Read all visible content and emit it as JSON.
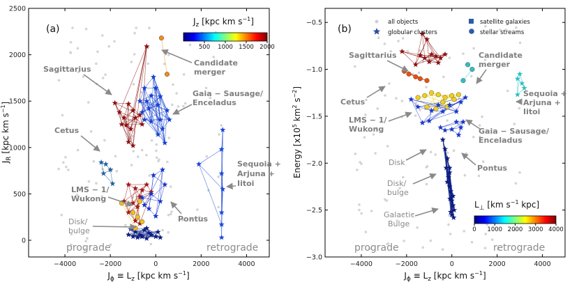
{
  "chart_data": [
    {
      "type": "scatter",
      "panel_label": "(a)",
      "xlabel": "Jϕ ≡ L z [kpc km s⁻¹]",
      "xlabel_parts": {
        "main": "J",
        "sub1": "ϕ",
        "mid": " ≡ L",
        "sub2": "z",
        "unit": " [kpc km s",
        "exp": "−1",
        "close": "]"
      },
      "ylabel_parts": {
        "main": "J",
        "sub": "R",
        "unit": " [kpc km s",
        "exp": "−1",
        "close": "]"
      },
      "xlim": [
        -5600,
        5000
      ],
      "ylim": [
        -180,
        2500
      ],
      "xticks": [
        -4000,
        -2000,
        0,
        2000,
        4000
      ],
      "yticks": [
        0,
        500,
        1000,
        1500,
        2000,
        2500
      ],
      "xtick_labels": [
        "−4000",
        "−2000",
        "0",
        "2000",
        "4000"
      ],
      "ytick_labels": [
        "0",
        "500",
        "1000",
        "1500",
        "2000",
        "2500"
      ],
      "colorbar": {
        "title_parts": {
          "main": "J",
          "sub": "z",
          "unit": " [kpc km s",
          "exp": "−1",
          "close": "]"
        },
        "range": [
          0,
          2000
        ],
        "ticks": [
          500,
          1000,
          1500,
          2000
        ],
        "tick_labels": [
          "500",
          "1000",
          "1500",
          "2000"
        ]
      },
      "regions": {
        "left": "prograde",
        "right": "retrograde"
      },
      "annotations": [
        {
          "lines": [
            "Sagittarius"
          ],
          "style": "bold"
        },
        {
          "lines": [
            "Candidate",
            "merger"
          ],
          "style": "bold"
        },
        {
          "lines": [
            "Gaia − Sausage/",
            "Enceladus"
          ],
          "style": "bold"
        },
        {
          "lines": [
            "Cetus"
          ],
          "style": "bold"
        },
        {
          "lines": [
            "Sequoia +",
            "Arjuna +",
            "Iitoi"
          ],
          "style": "bold"
        },
        {
          "lines": [
            "LMS − 1/",
            "Wukong"
          ],
          "style": "bold"
        },
        {
          "lines": [
            "Pontus"
          ],
          "style": "bold"
        },
        {
          "lines": [
            "Disk/",
            "bulge"
          ],
          "style": "plain"
        }
      ],
      "groups": [
        {
          "id": "sagittarius",
          "color": "#8b1010",
          "points": [
            [
              -1800,
              1480
            ],
            [
              -1600,
              1380
            ],
            [
              -1400,
              1320
            ],
            [
              -1200,
              1470
            ],
            [
              -1000,
              1400
            ],
            [
              -900,
              1320
            ],
            [
              -1300,
              1240
            ],
            [
              -1100,
              1200
            ],
            [
              -1500,
              1250
            ],
            [
              -700,
              1350
            ],
            [
              -600,
              1250
            ],
            [
              -400,
              2090
            ],
            [
              -1200,
              1060
            ],
            [
              -1000,
              1020
            ]
          ],
          "marker": "star"
        },
        {
          "id": "candidate",
          "color": "#f08c1c",
          "points": [
            [
              250,
              2180
            ],
            [
              500,
              1790
            ]
          ],
          "marker": "circle"
        },
        {
          "id": "gse",
          "color": "#1540d0",
          "points": [
            [
              -600,
              1380
            ],
            [
              -500,
              1640
            ],
            [
              -400,
              1500
            ],
            [
              -300,
              1420
            ],
            [
              -200,
              1280
            ],
            [
              0,
              1640
            ],
            [
              100,
              1460
            ],
            [
              200,
              1300
            ],
            [
              300,
              1200
            ],
            [
              400,
              1050
            ],
            [
              500,
              1400
            ],
            [
              -700,
              1500
            ],
            [
              -200,
              1560
            ],
            [
              600,
              1300
            ],
            [
              -100,
              1760
            ],
            [
              200,
              1550
            ],
            [
              100,
              1140
            ],
            [
              -500,
              1300
            ]
          ],
          "marker": "star"
        },
        {
          "id": "cetus",
          "color": "#2060a0",
          "points": [
            [
              -2400,
              840
            ],
            [
              -2200,
              820
            ],
            [
              -2000,
              760
            ],
            [
              -2300,
              720
            ],
            [
              -1900,
              610
            ]
          ],
          "marker": "star"
        },
        {
          "id": "sequoia",
          "color": "#1a48d8",
          "points": [
            [
              1900,
              820
            ],
            [
              2900,
              980
            ],
            [
              2900,
              720
            ],
            [
              2950,
              550
            ],
            [
              2900,
              300
            ],
            [
              2950,
              1190
            ],
            [
              2900,
              170
            ],
            [
              2900,
              30
            ]
          ],
          "marker": "star"
        },
        {
          "id": "lms",
          "color": "#a01818",
          "points": [
            [
              -1200,
              600
            ],
            [
              -900,
              560
            ],
            [
              -700,
              470
            ],
            [
              -1000,
              400
            ],
            [
              -800,
              360
            ],
            [
              -600,
              540
            ],
            [
              -400,
              600
            ],
            [
              -200,
              520
            ],
            [
              -1200,
              300
            ],
            [
              -1400,
              420
            ],
            [
              -900,
              210
            ],
            [
              -700,
              180
            ]
          ],
          "marker": "star"
        },
        {
          "id": "pontus",
          "color": "#1a36c8",
          "points": [
            [
              -600,
              460
            ],
            [
              -500,
              380
            ],
            [
              -300,
              340
            ],
            [
              -200,
              500
            ],
            [
              -100,
              700
            ],
            [
              300,
              760
            ],
            [
              200,
              420
            ],
            [
              0,
              260
            ],
            [
              400,
              600
            ]
          ],
          "marker": "star"
        },
        {
          "id": "disk",
          "color": "#0a1c80",
          "points": [
            [
              -1200,
              60
            ],
            [
              -1000,
              40
            ],
            [
              -800,
              30
            ],
            [
              -600,
              40
            ],
            [
              -400,
              20
            ],
            [
              -200,
              60
            ],
            [
              0,
              40
            ],
            [
              200,
              30
            ],
            [
              -900,
              90
            ],
            [
              -500,
              110
            ],
            [
              -300,
              80
            ],
            [
              100,
              90
            ],
            [
              -700,
              60
            ],
            [
              -1100,
              120
            ],
            [
              -400,
              130
            ]
          ],
          "marker": "star"
        },
        {
          "id": "warm",
          "color": "#f0c020",
          "points": [
            [
              -1000,
              300
            ],
            [
              -800,
              250
            ],
            [
              -600,
              200
            ],
            [
              -900,
              130
            ],
            [
              -1500,
              400
            ],
            [
              -700,
              420
            ]
          ],
          "marker": "circle"
        }
      ]
    },
    {
      "type": "scatter",
      "panel_label": "(b)",
      "xlabel_parts": {
        "main": "J",
        "sub1": "ϕ",
        "mid": " ≡ L",
        "sub2": "z",
        "unit": " [kpc km s",
        "exp": "−1",
        "close": "]"
      },
      "ylabel_parts": {
        "main": "Energy [x10",
        "exp1": "5",
        "mid": " km",
        "exp2": "2",
        "tail": " s",
        "exp3": "−2",
        "close": "]"
      },
      "xlim": [
        -5600,
        5000
      ],
      "ylim": [
        -3.0,
        -0.35
      ],
      "xticks": [
        -4000,
        -2000,
        0,
        2000,
        4000
      ],
      "yticks": [
        -3.0,
        -2.5,
        -2.0,
        -1.5,
        -1.0,
        -0.5
      ],
      "xtick_labels": [
        "−4000",
        "−2000",
        "0",
        "2000",
        "4000"
      ],
      "ytick_labels": [
        "−3.0",
        "−2.5",
        "−2.0",
        "−1.5",
        "−1.0",
        "−0.5"
      ],
      "legend": {
        "placement": "top",
        "entries": [
          "all objects",
          "globular clusters",
          "satellite galaxies",
          "stellar streams"
        ]
      },
      "colorbar": {
        "title_parts": {
          "main": "L",
          "sub": "⊥",
          "unit": " [km s",
          "exp": "−1",
          "close": " kpc]"
        },
        "range": [
          0,
          4000
        ],
        "ticks": [
          0,
          1000,
          2000,
          3000,
          4000
        ],
        "tick_labels": [
          "0",
          "1000",
          "2000",
          "3000",
          "4000"
        ]
      },
      "regions": {
        "left": "prograde",
        "right": "retrograde"
      },
      "annotations": [
        {
          "lines": [
            "Sagittarius"
          ],
          "style": "bold"
        },
        {
          "lines": [
            "Candidate",
            "merger"
          ],
          "style": "bold"
        },
        {
          "lines": [
            "Cetus"
          ],
          "style": "bold"
        },
        {
          "lines": [
            "Sequoia +",
            "Arjuna +",
            "Iitoi"
          ],
          "style": "bold"
        },
        {
          "lines": [
            "LMS − 1/",
            "Wukong"
          ],
          "style": "bold"
        },
        {
          "lines": [
            "Gaia − Sausage/",
            "Enceladus"
          ],
          "style": "bold"
        },
        {
          "lines": [
            "Pontus"
          ],
          "style": "bold"
        },
        {
          "lines": [
            "Disk"
          ],
          "style": "plain"
        },
        {
          "lines": [
            "Disk/",
            "bulge"
          ],
          "style": "plain"
        },
        {
          "lines": [
            "Galactic",
            "Bulge"
          ],
          "style": "plain"
        }
      ],
      "groups": [
        {
          "id": "sagittarius",
          "color": "#8b1010",
          "points": [
            [
              -1400,
              -0.85
            ],
            [
              -1200,
              -0.88
            ],
            [
              -900,
              -0.84
            ],
            [
              -700,
              -0.86
            ],
            [
              -500,
              -0.88
            ],
            [
              -300,
              -0.84
            ],
            [
              -1000,
              -0.92
            ],
            [
              -600,
              -0.93
            ],
            [
              -1300,
              -0.62
            ],
            [
              -1100,
              -0.68
            ],
            [
              -1600,
              -0.95
            ],
            [
              -2200,
              -0.81
            ]
          ],
          "marker": "star"
        },
        {
          "id": "candidate",
          "color": "#30c0c0",
          "points": [
            [
              700,
              -0.95
            ],
            [
              900,
              -1.0
            ],
            [
              500,
              -1.12
            ]
          ],
          "marker": "circle"
        },
        {
          "id": "cetus",
          "color": "#e85010",
          "points": [
            [
              -1900,
              -1.05
            ],
            [
              -1600,
              -1.08
            ],
            [
              -1400,
              -1.1
            ],
            [
              -1100,
              -1.12
            ],
            [
              -2100,
              -1.02
            ]
          ],
          "marker": "circle"
        },
        {
          "id": "sequoia",
          "color": "#30c0c0",
          "points": [
            [
              2900,
              -1.1
            ],
            [
              3100,
              -1.15
            ],
            [
              3200,
              -1.2
            ],
            [
              2900,
              -1.27
            ],
            [
              3000,
              -1.05
            ]
          ],
          "marker": "star"
        },
        {
          "id": "gse",
          "color": "#f0d020",
          "points": [
            [
              -1500,
              -1.3
            ],
            [
              -1200,
              -1.28
            ],
            [
              -900,
              -1.25
            ],
            [
              -600,
              -1.27
            ],
            [
              -300,
              -1.3
            ],
            [
              0,
              -1.28
            ],
            [
              -1100,
              -1.4
            ],
            [
              -700,
              -1.42
            ],
            [
              -400,
              -1.35
            ],
            [
              -200,
              -1.4
            ],
            [
              100,
              -1.32
            ],
            [
              300,
              -1.27
            ]
          ],
          "marker": "circle"
        },
        {
          "id": "lms",
          "color": "#1a38c8",
          "points": [
            [
              -1800,
              -1.32
            ],
            [
              -1500,
              -1.4
            ],
            [
              -900,
              -1.44
            ],
            [
              -600,
              -1.38
            ],
            [
              -400,
              -1.45
            ],
            [
              -100,
              -1.38
            ],
            [
              200,
              -1.45
            ],
            [
              400,
              -1.35
            ],
            [
              600,
              -1.3
            ],
            [
              -1300,
              -1.57
            ],
            [
              -1000,
              -1.55
            ]
          ],
          "marker": "star"
        },
        {
          "id": "pontus",
          "color": "#1a36c8",
          "points": [
            [
              200,
              -1.56
            ],
            [
              400,
              -1.62
            ],
            [
              300,
              -1.7
            ],
            [
              500,
              -1.56
            ],
            [
              0,
              -1.64
            ],
            [
              -300,
              -1.65
            ],
            [
              -500,
              -1.62
            ]
          ],
          "marker": "star"
        },
        {
          "id": "disk",
          "color": "#0a1c80",
          "points": [
            [
              -400,
              -1.75
            ],
            [
              -300,
              -1.85
            ],
            [
              -200,
              -1.95
            ],
            [
              -100,
              -2.05
            ],
            [
              -250,
              -2.05
            ],
            [
              -150,
              -2.15
            ],
            [
              -100,
              -2.25
            ],
            [
              -50,
              -2.3
            ],
            [
              0,
              -2.4
            ],
            [
              50,
              -2.45
            ],
            [
              100,
              -2.5
            ],
            [
              -50,
              -2.52
            ],
            [
              0,
              -2.55
            ],
            [
              50,
              -2.35
            ],
            [
              -200,
              -2.2
            ],
            [
              -100,
              -2.1
            ],
            [
              80,
              -2.58
            ],
            [
              -80,
              -2.38
            ]
          ],
          "marker": "star"
        }
      ]
    }
  ]
}
